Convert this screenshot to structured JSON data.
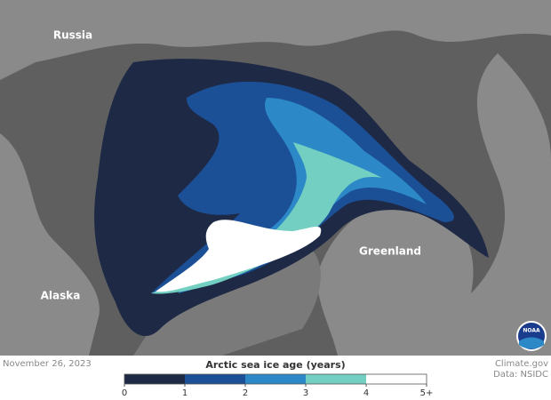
{
  "map": {
    "labels": {
      "russia": "Russia",
      "greenland": "Greenland",
      "alaska": "Alaska"
    },
    "logo": "NOAA"
  },
  "footer": {
    "date": "November 26, 2023",
    "credit": "Climate.gov",
    "source": "Data: NSIDC"
  },
  "legend": {
    "title": "Arctic sea ice age (years)",
    "ticks": [
      0,
      1,
      2,
      3,
      4,
      {
        "value": 5,
        "label": "5+"
      }
    ],
    "colors": [
      "#1e2a45",
      "#1b4f96",
      "#2c88c6",
      "#72cfc1",
      "#ffffff"
    ]
  }
}
